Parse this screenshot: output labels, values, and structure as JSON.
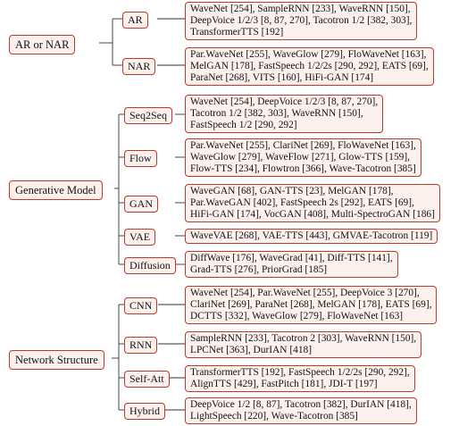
{
  "groups": [
    {
      "label": "AR or NAR",
      "children": [
        {
          "label": "AR",
          "lines": [
            "WaveNet [254], SampleRNN [233], WaveRNN [150],",
            "DeepVoice 1/2/3 [8, 87, 270], Tacotron 1/2 [382, 303],",
            "TransformerTTS [192]"
          ]
        },
        {
          "label": "NAR",
          "lines": [
            "Par.WaveNet [255], WaveGlow [279], FloWaveNet [163],",
            "MelGAN [178], FastSpeech 1/2/2s [290, 292], EATS [69],",
            "ParaNet [268], VITS [160], HiFi-GAN [174]"
          ]
        }
      ]
    },
    {
      "label": "Generative Model",
      "children": [
        {
          "label": "Seq2Seq",
          "lines": [
            "WaveNet [254], DeepVoice 1/2/3 [8, 87, 270],",
            "Tacotron 1/2 [382, 303], WaveRNN [150],",
            "FastSpeech 1/2 [290, 292]"
          ]
        },
        {
          "label": "Flow",
          "lines": [
            "Par.WaveNet [255], ClariNet [269], FloWaveNet [163],",
            "WaveGlow [279], WaveFlow [271], Glow-TTS [159],",
            "Flow-TTS [234], Flowtron [366], Wave-Tacotron [385]"
          ]
        },
        {
          "label": "GAN",
          "lines": [
            "WaveGAN [68], GAN-TTS [23], MelGAN [178],",
            "Par.WaveGAN [402], FastSpeech 2s [292], EATS [69],",
            "HiFi-GAN [174], VocGAN [408], Multi-SpectroGAN [186]"
          ]
        },
        {
          "label": "VAE",
          "lines": [
            "WaveVAE [268], VAE-TTS [443], GMVAE-Tacotron [119]"
          ]
        },
        {
          "label": "Diffusion",
          "lines": [
            "DiffWave [176], WaveGrad [41], Diff-TTS [141],",
            "Grad-TTS [276], PriorGrad [185]"
          ]
        }
      ]
    },
    {
      "label": "Network Structure",
      "children": [
        {
          "label": "CNN",
          "lines": [
            "WaveNet [254], Par.WaveNet [255], DeepVoice 3 [270],",
            "ClariNet [269], ParaNet [268], MelGAN [178], EATS [69],",
            "DCTTS [332], WaveGlow [279], FloWaveNet [163]"
          ]
        },
        {
          "label": "RNN",
          "lines": [
            "SampleRNN [233], Tacotron 2 [303], WaveRNN [150],",
            "LPCNet [363], DurIAN [418]"
          ]
        },
        {
          "label": "Self-Att",
          "lines": [
            "TransformerTTS [192], FastSpeech 1/2/2s [290, 292],",
            "AlignTTS [429], FastPitch [181], JDI-T [197]"
          ]
        },
        {
          "label": "Hybrid",
          "lines": [
            "DeepVoice 1/2 [8, 87], Tacotron [382], DurIAN [418],",
            "LightSpeech [220], Wave-Tacotron [385]"
          ]
        }
      ]
    }
  ]
}
